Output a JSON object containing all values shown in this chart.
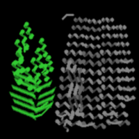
{
  "background_color": "#000000",
  "green": "#33cc33",
  "green_dark": "#228822",
  "green_light": "#55ee55",
  "gray": "#888888",
  "gray_dark": "#444444",
  "gray_light": "#aaaaaa",
  "gray_mid": "#666666"
}
